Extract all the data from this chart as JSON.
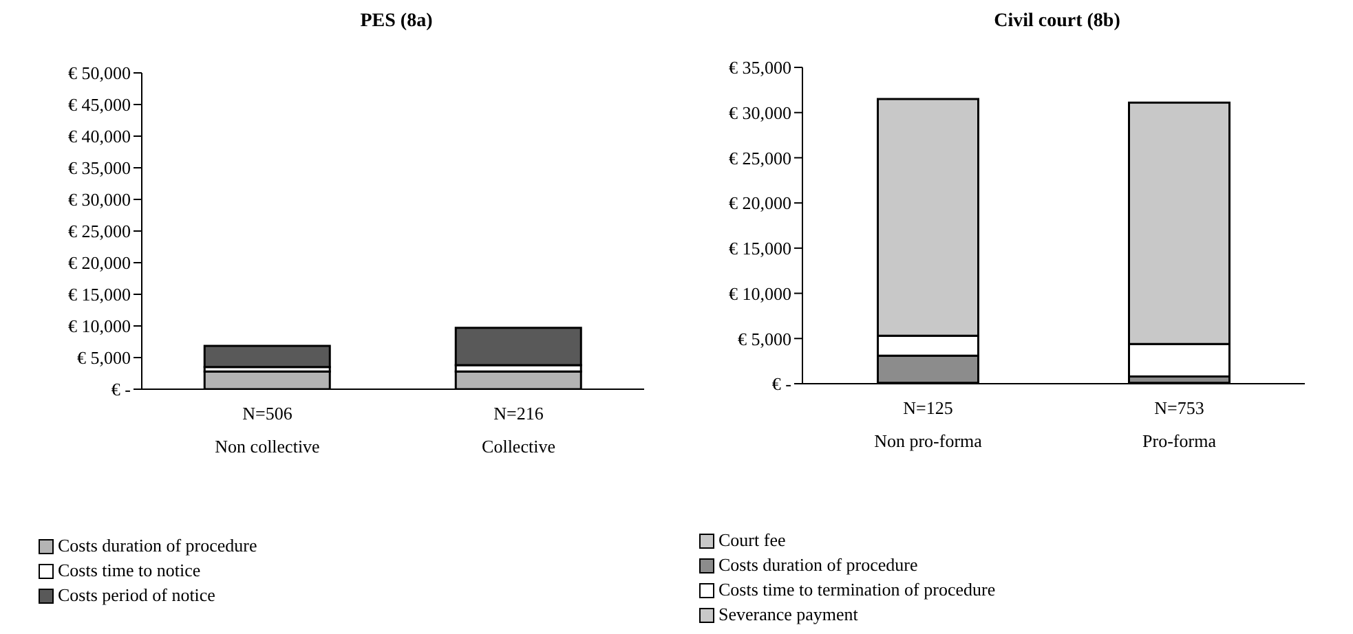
{
  "chart_data": [
    {
      "type": "bar",
      "title": "PES (8a)",
      "stacked": true,
      "categories": [
        "N=506\nNon collective",
        "N=216\nCollective"
      ],
      "series": [
        {
          "name": "Costs duration of procedure",
          "color": "#b4b4b4",
          "values": [
            2800,
            2800
          ]
        },
        {
          "name": "Costs time to notice",
          "color": "#ffffff",
          "values": [
            700,
            1000
          ]
        },
        {
          "name": "Costs period of notice",
          "color": "#595959",
          "values": [
            3350,
            5900
          ]
        }
      ],
      "ylim": [
        0,
        50000
      ],
      "yticks": [
        {
          "value": 0,
          "label": "€ -"
        },
        {
          "value": 5000,
          "label": "€ 5,000"
        },
        {
          "value": 10000,
          "label": "€ 10,000"
        },
        {
          "value": 15000,
          "label": "€ 15,000"
        },
        {
          "value": 20000,
          "label": "€ 20,000"
        },
        {
          "value": 25000,
          "label": "€ 25,000"
        },
        {
          "value": 30000,
          "label": "€ 30,000"
        },
        {
          "value": 35000,
          "label": "€ 35,000"
        },
        {
          "value": 40000,
          "label": "€ 40,000"
        },
        {
          "value": 45000,
          "label": "€ 45,000"
        },
        {
          "value": 50000,
          "label": "€ 50,000"
        }
      ],
      "grid": false,
      "legend": "bottom left"
    },
    {
      "type": "bar",
      "title": "Civil court (8b)",
      "stacked": true,
      "categories": [
        "N=125\nNon pro-forma",
        "N=753\nPro-forma"
      ],
      "series": [
        {
          "name": "Court fee",
          "color": "#c8c8c8",
          "values": [
            100,
            100
          ]
        },
        {
          "name": "Costs duration of procedure",
          "color": "#8c8c8c",
          "values": [
            3000,
            700
          ]
        },
        {
          "name": "Costs time to termination of procedure",
          "color": "#ffffff",
          "values": [
            2200,
            3600
          ]
        },
        {
          "name": "Severance payment",
          "color": "#c8c8c8",
          "values": [
            26200,
            26700
          ]
        }
      ],
      "ylim": [
        0,
        35000
      ],
      "yticks": [
        {
          "value": 0,
          "label": "€ -"
        },
        {
          "value": 5000,
          "label": "€ 5,000"
        },
        {
          "value": 10000,
          "label": "€ 10,000"
        },
        {
          "value": 15000,
          "label": "€ 15,000"
        },
        {
          "value": 20000,
          "label": "€ 20,000"
        },
        {
          "value": 25000,
          "label": "€ 25,000"
        },
        {
          "value": 30000,
          "label": "€ 30,000"
        },
        {
          "value": 35000,
          "label": "€ 35,000"
        }
      ],
      "grid": false,
      "legend": "bottom left"
    }
  ]
}
